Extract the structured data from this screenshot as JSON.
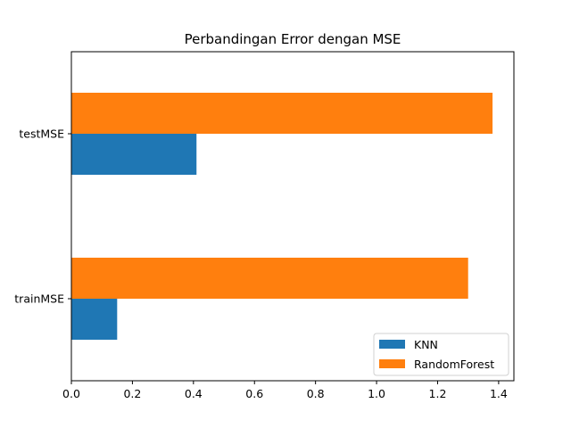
{
  "chart_data": {
    "type": "bar",
    "orientation": "horizontal",
    "title": "Perbandingan Error dengan MSE",
    "xlabel": "",
    "ylabel": "",
    "categories": [
      "trainMSE",
      "testMSE"
    ],
    "series": [
      {
        "name": "KNN",
        "values": [
          0.15,
          0.41
        ],
        "color": "#1f77b4"
      },
      {
        "name": "RandomForest",
        "values": [
          1.3,
          1.38
        ],
        "color": "#ff7f0e"
      }
    ],
    "xlim": [
      0,
      1.45
    ],
    "xticks": [
      "0.0",
      "0.2",
      "0.4",
      "0.6",
      "0.8",
      "1.0",
      "1.2",
      "1.4"
    ],
    "grid": false,
    "legend_position": "lower-right"
  }
}
